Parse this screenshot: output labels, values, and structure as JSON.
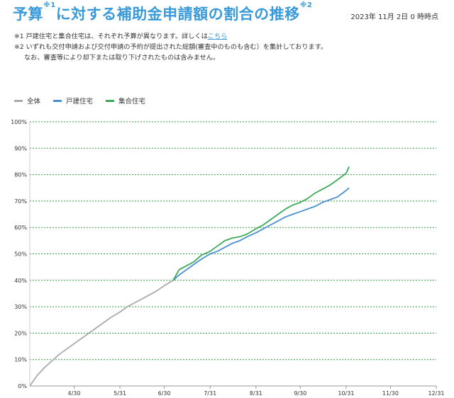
{
  "header": {
    "title": "予算",
    "title_sup1": "※1",
    "title_mid": "に対する補助金申請額の割合の推移",
    "title_sup2": "※2",
    "as_of": "2023年 11月 2日 0 時時点"
  },
  "notes": {
    "note1_prefix": "※1 戸建住宅と集合住宅は、それぞれ予算が異なります。詳しくは",
    "note1_link": "こちら",
    "note2_line1": "※2 いずれも交付申請および交付申請の予約が提出された総額(審査中のものも含む）を集計しております。",
    "note2_line2": "なお、審査等により却下または取り下げされたものは含みません。"
  },
  "colors": {
    "all": "#aaaaaa",
    "detached": "#4a90d0",
    "collective": "#3daa5a",
    "grid": "#2e9a3a",
    "accent": "#3a9ad9"
  },
  "chart_data": {
    "type": "line",
    "title": "",
    "xlabel": "",
    "ylabel": "",
    "legend_position": "top-left",
    "grid": true,
    "ylim": [
      0,
      100
    ],
    "xlim": [
      "2023-03-31",
      "2023-12-31"
    ],
    "x_ticks": [
      "4/30",
      "5/31",
      "6/30",
      "7/31",
      "8/31",
      "9/30",
      "10/31",
      "11/30",
      "12/31"
    ],
    "y_ticks": [
      "0%",
      "10%",
      "20%",
      "30%",
      "40%",
      "50%",
      "60%",
      "70%",
      "80%",
      "90%",
      "100%"
    ],
    "series": [
      {
        "name": "全体",
        "x": [
          "2023-03-31",
          "2023-04-05",
          "2023-04-10",
          "2023-04-15",
          "2023-04-20",
          "2023-04-25",
          "2023-04-30",
          "2023-05-05",
          "2023-05-10",
          "2023-05-15",
          "2023-05-20",
          "2023-05-25",
          "2023-05-31",
          "2023-06-05",
          "2023-06-10",
          "2023-06-15",
          "2023-06-20",
          "2023-06-25",
          "2023-06-30",
          "2023-07-06"
        ],
        "y": [
          0,
          4,
          7,
          9.5,
          12,
          14,
          16,
          18,
          20,
          22,
          24,
          26,
          28,
          30,
          31.5,
          33,
          34.5,
          36,
          38,
          40
        ]
      },
      {
        "name": "戸建住宅",
        "x": [
          "2023-07-06",
          "2023-07-10",
          "2023-07-15",
          "2023-07-20",
          "2023-07-25",
          "2023-07-31",
          "2023-08-05",
          "2023-08-10",
          "2023-08-15",
          "2023-08-20",
          "2023-08-25",
          "2023-08-31",
          "2023-09-05",
          "2023-09-10",
          "2023-09-15",
          "2023-09-20",
          "2023-09-25",
          "2023-09-30",
          "2023-10-05",
          "2023-10-10",
          "2023-10-15",
          "2023-10-20",
          "2023-10-25",
          "2023-10-31",
          "2023-11-02"
        ],
        "y": [
          40,
          42,
          44,
          46,
          48,
          50,
          51,
          52.5,
          54,
          55,
          56.5,
          58,
          59.5,
          61,
          62.5,
          64,
          65,
          66,
          67,
          68,
          69.5,
          70.5,
          71.5,
          74,
          75
        ]
      },
      {
        "name": "集合住宅",
        "x": [
          "2023-07-06",
          "2023-07-10",
          "2023-07-15",
          "2023-07-20",
          "2023-07-25",
          "2023-07-31",
          "2023-08-05",
          "2023-08-10",
          "2023-08-15",
          "2023-08-20",
          "2023-08-25",
          "2023-08-31",
          "2023-09-05",
          "2023-09-10",
          "2023-09-15",
          "2023-09-20",
          "2023-09-25",
          "2023-09-30",
          "2023-10-05",
          "2023-10-10",
          "2023-10-15",
          "2023-10-20",
          "2023-10-25",
          "2023-10-31",
          "2023-11-02"
        ],
        "y": [
          40,
          44,
          45.5,
          47,
          49.5,
          51,
          53,
          55,
          56,
          56.5,
          57.5,
          59.5,
          61,
          63,
          65,
          67,
          68.5,
          69.5,
          71,
          73,
          74.5,
          76,
          78,
          80.5,
          83
        ]
      }
    ]
  }
}
